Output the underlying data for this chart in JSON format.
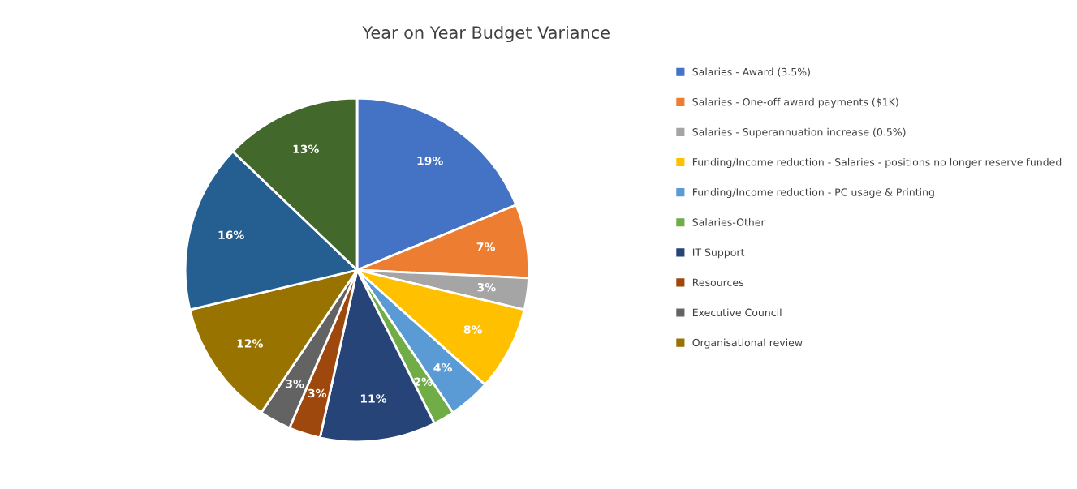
{
  "chart_data": {
    "type": "pie",
    "title": "Year on Year Budget Variance",
    "categories": [
      "Salaries - Award (3.5%)",
      "Salaries - One-off award payments ($1K)",
      "Salaries - Superannuation increase (0.5%)",
      "Funding/Income reduction - Salaries - positions no longer reserve funded",
      "Funding/Income reduction - PC usage & Printing",
      "Salaries-Other",
      "IT Support",
      "Resources",
      "Executive Council",
      "Organisational review",
      null,
      null
    ],
    "values": [
      19,
      7,
      3,
      8,
      4,
      2,
      11,
      3,
      3,
      12,
      16,
      13
    ],
    "colors": [
      "#4472c4",
      "#ed7d31",
      "#a5a5a5",
      "#ffc000",
      "#5b9bd5",
      "#70ad47",
      "#264478",
      "#9e480e",
      "#636363",
      "#997300",
      "#255e91",
      "#43682b"
    ],
    "value_labels": [
      "19%",
      "7%",
      "3%",
      "8%",
      "4%",
      "2%",
      "11%",
      "3%",
      "3%",
      "12%",
      "16%",
      "13%"
    ],
    "legend": "right"
  }
}
